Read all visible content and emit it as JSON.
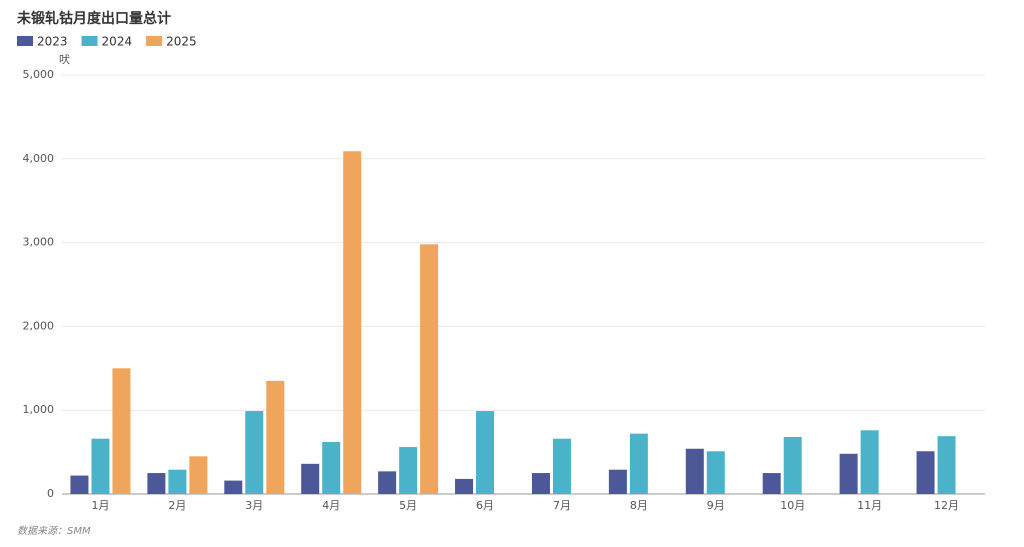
{
  "chart_data": {
    "type": "bar",
    "title": "未锻轧钴月度出口量总计",
    "y_label": "吠",
    "source": "数据来源：SMM",
    "categories": [
      "1月",
      "2月",
      "3月",
      "4月",
      "5月",
      "6月",
      "7月",
      "8月",
      "9月",
      "10月",
      "11月",
      "12月"
    ],
    "series": [
      {
        "name": "2023",
        "color": "#4c5897",
        "values": [
          220,
          250,
          160,
          360,
          270,
          180,
          250,
          290,
          540,
          250,
          480,
          510
        ]
      },
      {
        "name": "2024",
        "color": "#4ab3c9",
        "values": [
          660,
          290,
          990,
          620,
          560,
          990,
          660,
          720,
          510,
          680,
          760,
          690
        ]
      },
      {
        "name": "2025",
        "color": "#efa55c",
        "values": [
          1500,
          450,
          1350,
          4090,
          2980,
          null,
          null,
          null,
          null,
          null,
          null,
          null
        ]
      }
    ],
    "ylim": [
      0,
      5000
    ],
    "yticks": [
      0,
      {
        "value": 1000,
        "label": "1,000"
      },
      {
        "value": 2000,
        "label": "2,000"
      },
      {
        "value": 3000,
        "label": "3,000"
      },
      {
        "value": 4000,
        "label": "4,000"
      },
      {
        "value": 5000,
        "label": "5,000"
      }
    ],
    "grid": true
  }
}
